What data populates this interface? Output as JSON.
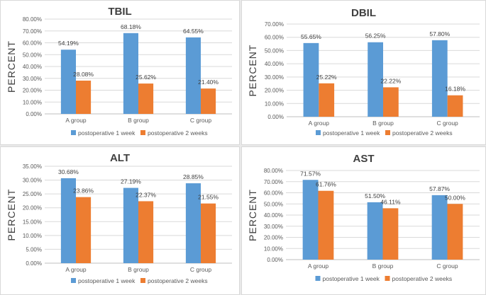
{
  "colors": {
    "series1": "#5b9bd5",
    "series2": "#ed7d31",
    "grid": "#d9d9d9",
    "axis": "#bfbfbf"
  },
  "chart_data": [
    {
      "type": "bar",
      "title": "TBIL",
      "ylabel": "PERCENT",
      "xlabel": "",
      "categories": [
        "A group",
        "B group",
        "C group"
      ],
      "series": [
        {
          "name": "postoperative 1 week",
          "values": [
            54.19,
            68.18,
            64.55
          ]
        },
        {
          "name": "postoperative  2 weeks",
          "values": [
            28.08,
            25.62,
            21.4
          ]
        }
      ],
      "data_labels": [
        [
          "54.19%",
          "68.18%",
          "64.55%"
        ],
        [
          "28.08%",
          "25.62%",
          "21.40%"
        ]
      ],
      "ylim": [
        0,
        80
      ],
      "ystep": 10,
      "yticks": [
        "0.00%",
        "10.00%",
        "20.00%",
        "30.00%",
        "40.00%",
        "50.00%",
        "60.00%",
        "70.00%",
        "80.00%"
      ],
      "grid": true,
      "legend": "bottom"
    },
    {
      "type": "bar",
      "title": "DBIL",
      "ylabel": "PERCENT",
      "xlabel": "",
      "categories": [
        "A group",
        "B group",
        "C group"
      ],
      "series": [
        {
          "name": "postoperative 1 week",
          "values": [
            55.65,
            56.25,
            57.8
          ]
        },
        {
          "name": "postoperative  2 weeks",
          "values": [
            25.22,
            22.22,
            16.18
          ]
        }
      ],
      "data_labels": [
        [
          "55.65%",
          "56.25%",
          "57.80%"
        ],
        [
          "25.22%",
          "22.22%",
          "16.18%"
        ]
      ],
      "ylim": [
        0,
        70
      ],
      "ystep": 10,
      "yticks": [
        "0.00%",
        "10.00%",
        "20.00%",
        "30.00%",
        "40.00%",
        "50.00%",
        "60.00%",
        "70.00%"
      ],
      "grid": true,
      "legend": "bottom"
    },
    {
      "type": "bar",
      "title": "ALT",
      "ylabel": "PERCENT",
      "xlabel": "",
      "categories": [
        "A group",
        "B group",
        "C group"
      ],
      "series": [
        {
          "name": "postoperative 1 week",
          "values": [
            30.68,
            27.19,
            28.85
          ]
        },
        {
          "name": "postoperative  2 weeks",
          "values": [
            23.86,
            22.37,
            21.55
          ]
        }
      ],
      "data_labels": [
        [
          "30.68%",
          "27.19%",
          "28.85%"
        ],
        [
          "23.86%",
          "22.37%",
          "21.55%"
        ]
      ],
      "ylim": [
        0,
        35
      ],
      "ystep": 5,
      "yticks": [
        "0.00%",
        "5.00%",
        "10.00%",
        "15.00%",
        "20.00%",
        "25.00%",
        "30.00%",
        "35.00%"
      ],
      "grid": true,
      "legend": "bottom"
    },
    {
      "type": "bar",
      "title": "AST",
      "ylabel": "PERCENT",
      "xlabel": "",
      "categories": [
        "A group",
        "B group",
        "C group"
      ],
      "series": [
        {
          "name": "postoperative 1 week",
          "values": [
            71.57,
            51.5,
            57.87
          ]
        },
        {
          "name": "postoperative  2 weeks",
          "values": [
            61.76,
            46.11,
            50.0
          ]
        }
      ],
      "data_labels": [
        [
          "71.57%",
          "51.50%",
          "57.87%"
        ],
        [
          "61.76%",
          "46.11%",
          "50.00%"
        ]
      ],
      "ylim": [
        0,
        80
      ],
      "ystep": 10,
      "yticks": [
        "0.00%",
        "10.00%",
        "20.00%",
        "30.00%",
        "40.00%",
        "50.00%",
        "60.00%",
        "70.00%",
        "80.00%"
      ],
      "grid": true,
      "legend": "bottom"
    }
  ]
}
